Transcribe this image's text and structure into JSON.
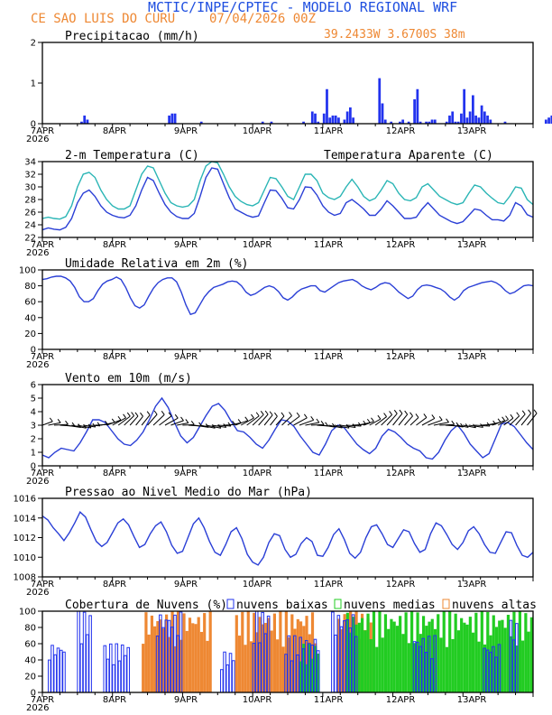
{
  "header": {
    "title": "MCTIC/INPE/CPTEC - MODELO REGIONAL WRF",
    "location": "CE SAO LUIS DO CURU",
    "run": "07/04/2026 00Z",
    "coords": "39.2433W 3.6700S 38m",
    "title_color": "#1f4fe0",
    "accent_color": "#ee8833"
  },
  "x_ticks": [
    "7APR",
    "8APR",
    "9APR",
    "10APR",
    "11APR",
    "12APR",
    "13APR"
  ],
  "x_year": "2026",
  "chart_data": [
    {
      "type": "bar",
      "title": "Precipitacao (mm/h)",
      "ylim": [
        0,
        2
      ],
      "yticks": [
        "0",
        "1",
        "2"
      ],
      "x_hours_step": 1,
      "color": "#2233ee",
      "values": [
        0,
        0,
        0,
        0,
        0,
        0,
        0,
        0,
        0,
        0,
        0,
        0,
        0,
        0.05,
        0.2,
        0.1,
        0,
        0,
        0,
        0,
        0,
        0,
        0,
        0,
        0,
        0,
        0,
        0,
        0,
        0,
        0,
        0,
        0,
        0,
        0,
        0,
        0,
        0,
        0,
        0,
        0,
        0,
        0,
        0.2,
        0.25,
        0.25,
        0,
        0,
        0,
        0,
        0,
        0,
        0,
        0,
        0.05,
        0,
        0,
        0,
        0,
        0,
        0,
        0,
        0,
        0,
        0,
        0,
        0,
        0,
        0,
        0,
        0,
        0,
        0,
        0,
        0,
        0.05,
        0,
        0,
        0.05,
        0,
        0,
        0,
        0,
        0,
        0,
        0,
        0,
        0,
        0,
        0.05,
        0,
        0,
        0.3,
        0.25,
        0.05,
        0,
        0.25,
        0.85,
        0.15,
        0.2,
        0.2,
        0.15,
        0,
        0.1,
        0.3,
        0.4,
        0.15,
        0,
        0,
        0,
        0,
        0,
        0,
        0,
        0,
        1.12,
        0.5,
        0.1,
        0,
        0.05,
        0,
        0,
        0.05,
        0.1,
        0,
        0.05,
        0,
        0.6,
        0.85,
        0.05,
        0,
        0.05,
        0.05,
        0.1,
        0.1,
        0,
        0,
        0,
        0.05,
        0.2,
        0.3,
        0.05,
        0.05,
        0.25,
        0.85,
        0.15,
        0.3,
        0.7,
        0.2,
        0.15,
        0.45,
        0.3,
        0.2,
        0.1,
        0,
        0,
        0,
        0,
        0.05,
        0,
        0,
        0,
        0,
        0,
        0,
        0,
        0,
        0,
        0,
        0,
        0,
        0,
        0.1,
        0.15,
        0.2,
        0.1,
        0.2,
        0.1,
        0.15,
        0.2
      ]
    },
    {
      "type": "line",
      "title": "2-m Temperatura (C)",
      "legend": "Temperatura Aparente (C)",
      "ylim": [
        22,
        34
      ],
      "yticks": [
        "22",
        "24",
        "26",
        "28",
        "30",
        "32",
        "34"
      ],
      "series": [
        {
          "color": "#2a3fd6",
          "values": [
            23.2,
            23.5,
            23.3,
            23.2,
            23.6,
            25,
            27.5,
            29,
            29.5,
            28.5,
            27,
            26,
            25.5,
            25.2,
            25.1,
            25.5,
            27,
            29.5,
            31.5,
            31,
            29,
            27.2,
            26,
            25.3,
            25,
            25,
            25.8,
            28.5,
            31.5,
            33,
            32.8,
            30.5,
            28.3,
            26.5,
            26,
            25.5,
            25.2,
            25.4,
            27.5,
            29.5,
            29.4,
            28.2,
            26.7,
            26.5,
            28,
            30,
            29.9,
            28.7,
            27,
            26,
            25.5,
            25.8,
            27.5,
            28,
            27.3,
            26.5,
            25.5,
            25.5,
            26.5,
            27.8,
            27,
            26,
            25,
            25,
            25.2,
            26.5,
            27.5,
            26.5,
            25.5,
            25,
            24.5,
            24.2,
            24.5,
            25.5,
            26.5,
            26.3,
            25.5,
            24.8,
            24.8,
            24.6,
            25.5,
            27.5,
            27,
            25.6,
            25.2
          ]
        },
        {
          "color": "#2ab5b5",
          "values": [
            25,
            25.2,
            25,
            24.9,
            25.3,
            27,
            30,
            32,
            32.3,
            31.5,
            29.5,
            28,
            27,
            26.5,
            26.5,
            27,
            29.5,
            32,
            33.3,
            33,
            31,
            29,
            27.5,
            27,
            26.8,
            27,
            28,
            31,
            33.3,
            34,
            33.8,
            32,
            30,
            28.5,
            27.7,
            27.2,
            27,
            27.5,
            29.5,
            31.5,
            31.3,
            30,
            28.5,
            28,
            30,
            32,
            32,
            31,
            29,
            28.3,
            28,
            28.5,
            30,
            31.2,
            30,
            28.5,
            27.8,
            28.2,
            29.5,
            31,
            30.5,
            29,
            28,
            27.8,
            28.3,
            30,
            30.5,
            29.5,
            28.5,
            28,
            27.5,
            27.2,
            27.5,
            29,
            30.3,
            30,
            29,
            28.2,
            27.5,
            27.3,
            28.5,
            30,
            29.8,
            28,
            27.2
          ]
        }
      ]
    },
    {
      "type": "line",
      "title": "Umidade Relativa em 2m (%)",
      "ylim": [
        0,
        100
      ],
      "yticks": [
        "0",
        "20",
        "40",
        "60",
        "80",
        "100"
      ],
      "series": [
        {
          "color": "#2a3fd6",
          "values": [
            88,
            89,
            91,
            92,
            92,
            90,
            86,
            78,
            66,
            60,
            60,
            64,
            74,
            82,
            86,
            88,
            91,
            88,
            78,
            65,
            55,
            52,
            56,
            67,
            77,
            84,
            88,
            90,
            90,
            85,
            72,
            56,
            44,
            46,
            56,
            66,
            73,
            78,
            80,
            82,
            85,
            86,
            85,
            80,
            72,
            68,
            70,
            74,
            78,
            80,
            78,
            73,
            65,
            62,
            66,
            72,
            76,
            78,
            80,
            80,
            74,
            72,
            76,
            80,
            84,
            86,
            87,
            88,
            85,
            80,
            77,
            75,
            78,
            82,
            84,
            83,
            78,
            72,
            68,
            64,
            67,
            75,
            80,
            81,
            80,
            78,
            76,
            72,
            66,
            62,
            66,
            74,
            78,
            80,
            82,
            84,
            85,
            86,
            84,
            80,
            74,
            70,
            72,
            76,
            80,
            81,
            80
          ]
        }
      ]
    },
    {
      "type": "line",
      "title": "Vento em 10m (m/s)",
      "ylim": [
        0,
        6
      ],
      "yticks": [
        "0",
        "1",
        "2",
        "3",
        "4",
        "5",
        "6"
      ],
      "barb_row_value": 3,
      "series": [
        {
          "color": "#2a3fd6",
          "values": [
            0.8,
            0.6,
            1,
            1.3,
            1.2,
            1.1,
            1.7,
            2.5,
            3.4,
            3.4,
            3.2,
            2.6,
            2,
            1.6,
            1.5,
            1.9,
            2.5,
            3.4,
            4.4,
            5,
            4.3,
            3.2,
            2.2,
            1.7,
            2.1,
            2.9,
            3.7,
            4.4,
            4.6,
            4.1,
            3.3,
            2.6,
            2.5,
            2.1,
            1.6,
            1.3,
            1.9,
            2.7,
            3.4,
            3.3,
            2.9,
            2.2,
            1.6,
            1,
            0.8,
            1.6,
            2.6,
            3,
            2.8,
            2.2,
            1.6,
            1.2,
            0.9,
            1.3,
            2.2,
            2.7,
            2.5,
            2.1,
            1.6,
            1.3,
            1.1,
            0.6,
            0.5,
            1,
            1.9,
            2.6,
            3,
            2.4,
            1.6,
            1.1,
            0.6,
            0.9,
            2,
            3.1,
            3.2,
            2.9,
            2.3,
            1.7,
            1.2
          ]
        }
      ]
    },
    {
      "type": "line",
      "title": "Pressao ao Nivel Medio do Mar (hPa)",
      "ylim": [
        1008,
        1016
      ],
      "yticks": [
        "1008",
        "1010",
        "1012",
        "1014",
        "1016"
      ],
      "series": [
        {
          "color": "#2a3fd6",
          "values": [
            1014.2,
            1013.8,
            1013,
            1012.4,
            1011.7,
            1012.5,
            1013.5,
            1014.6,
            1014.1,
            1012.8,
            1011.6,
            1011.1,
            1011.5,
            1012.5,
            1013.5,
            1013.9,
            1013.3,
            1012.1,
            1011,
            1011.3,
            1012.4,
            1013.2,
            1013.6,
            1012.6,
            1011.2,
            1010.4,
            1010.6,
            1012,
            1013.4,
            1014,
            1013,
            1011.6,
            1010.5,
            1010.2,
            1011.3,
            1012.6,
            1013,
            1011.9,
            1010.3,
            1009.5,
            1009.2,
            1010,
            1011.5,
            1012.4,
            1012.2,
            1010.8,
            1010,
            1010.3,
            1011.4,
            1012,
            1011.6,
            1010.2,
            1010.1,
            1011,
            1012.3,
            1012.9,
            1011.8,
            1010.4,
            1009.9,
            1010.5,
            1012,
            1013.1,
            1013.3,
            1012.4,
            1011.3,
            1011,
            1011.9,
            1012.8,
            1012.6,
            1011.4,
            1010.5,
            1010.8,
            1012.4,
            1013.5,
            1013.2,
            1012.3,
            1011.3,
            1010.8,
            1011.5,
            1012.7,
            1013.1,
            1012.4,
            1011.3,
            1010.5,
            1010.4,
            1011.5,
            1012.6,
            1012.5,
            1011.2,
            1010.2,
            1010,
            1010.5
          ]
        }
      ]
    },
    {
      "type": "bar",
      "title": "Cobertura de Nuvens (%)",
      "ylim": [
        0,
        100
      ],
      "yticks": [
        "0",
        "20",
        "40",
        "60",
        "80",
        "100"
      ],
      "series": [
        {
          "name": "nuvens baixas",
          "color": "#2233ee"
        },
        {
          "name": "nuvens medias",
          "color": "#22cc22"
        },
        {
          "name": "nuvens altas",
          "color": "#ee8833"
        }
      ],
      "segments": [
        {
          "series": 2,
          "from_hour": 34,
          "to_hour": 58,
          "value": 100
        },
        {
          "series": 2,
          "from_hour": 66,
          "to_hour": 94,
          "value": 100
        },
        {
          "series": 2,
          "from_hour": 101,
          "to_hour": 113,
          "value": 100
        },
        {
          "series": 1,
          "from_hour": 88,
          "to_hour": 95,
          "value": 60
        },
        {
          "series": 1,
          "from_hour": 104,
          "to_hour": 168,
          "value": 100
        },
        {
          "series": 0,
          "from_hour": 2,
          "to_hour": 8,
          "value": 60
        },
        {
          "series": 0,
          "from_hour": 12,
          "to_hour": 17,
          "value": 100
        },
        {
          "series": 0,
          "from_hour": 21,
          "to_hour": 30,
          "value": 60
        },
        {
          "series": 0,
          "from_hour": 39,
          "to_hour": 48,
          "value": 100
        },
        {
          "series": 0,
          "from_hour": 61,
          "to_hour": 66,
          "value": 50
        },
        {
          "series": 0,
          "from_hour": 72,
          "to_hour": 78,
          "value": 100
        },
        {
          "series": 0,
          "from_hour": 83,
          "to_hour": 95,
          "value": 70
        },
        {
          "series": 0,
          "from_hour": 99,
          "to_hour": 108,
          "value": 100
        },
        {
          "series": 0,
          "from_hour": 127,
          "to_hour": 135,
          "value": 70
        },
        {
          "series": 0,
          "from_hour": 151,
          "to_hour": 157,
          "value": 60
        },
        {
          "series": 0,
          "from_hour": 160,
          "to_hour": 163,
          "value": 90
        }
      ]
    }
  ]
}
